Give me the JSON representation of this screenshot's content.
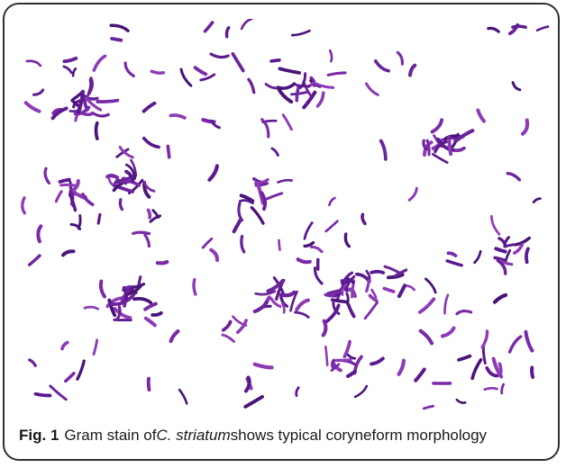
{
  "figure": {
    "label": "Fig. 1",
    "caption_before": "Gram stain of ",
    "caption_species": "C. striatum",
    "caption_after": " shows typical coryneform morphology",
    "stain_colors": [
      "#5b1a8f",
      "#7a2aa8",
      "#8e3bb6",
      "#4a1479",
      "#6b2499"
    ]
  }
}
